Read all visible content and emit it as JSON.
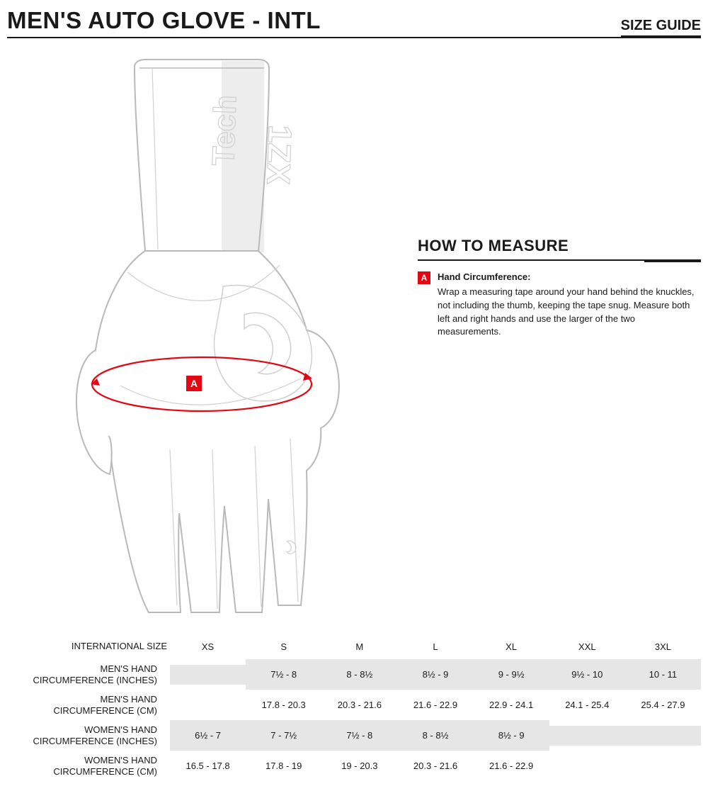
{
  "header": {
    "title": "MEN'S AUTO GLOVE - INTL",
    "size_guide_label": "SIZE GUIDE"
  },
  "howto": {
    "title": "HOW TO MEASURE",
    "marker": "A",
    "heading": "Hand Circumference:",
    "body": "Wrap a measuring tape around your hand behind the knuckles, not including the thumb, keeping the tape snug. Measure both left and right hands and use the larger of the two measurements."
  },
  "diagram": {
    "marker": "A",
    "cuff_text1": "Tech",
    "cuff_text2": "1ZX",
    "measure_color": "#e30613",
    "line_color": "#b9b9b9",
    "shade_color": "#ededed"
  },
  "table": {
    "header_label": "INTERNATIONAL SIZE",
    "sizes": [
      "XS",
      "S",
      "M",
      "L",
      "XL",
      "XXL",
      "3XL"
    ],
    "rows": [
      {
        "label_line1": "MEN'S HAND",
        "label_line2": "CIRCUMFERENCE (INCHES)",
        "shaded": true,
        "values": [
          "",
          "7½ - 8",
          "8 - 8½",
          "8½ - 9",
          "9 - 9½",
          "9½ - 10",
          "10 - 11"
        ]
      },
      {
        "label_line1": "MEN'S HAND",
        "label_line2": "CIRCUMFERENCE (CM)",
        "shaded": false,
        "values": [
          "",
          "17.8 - 20.3",
          "20.3 - 21.6",
          "21.6 - 22.9",
          "22.9 - 24.1",
          "24.1 - 25.4",
          "25.4 - 27.9"
        ]
      },
      {
        "label_line1": "WOMEN'S HAND",
        "label_line2": "CIRCUMFERENCE (INCHES)",
        "shaded": true,
        "values": [
          "6½ - 7",
          "7 - 7½",
          "7½ - 8",
          "8 - 8½",
          "8½ - 9",
          "",
          ""
        ]
      },
      {
        "label_line1": "WOMEN'S HAND",
        "label_line2": "CIRCUMFERENCE (CM)",
        "shaded": false,
        "values": [
          "16.5 - 17.8",
          "17.8 - 19",
          "19 - 20.3",
          "20.3 - 21.6",
          "21.6 - 22.9",
          "",
          ""
        ]
      }
    ]
  }
}
